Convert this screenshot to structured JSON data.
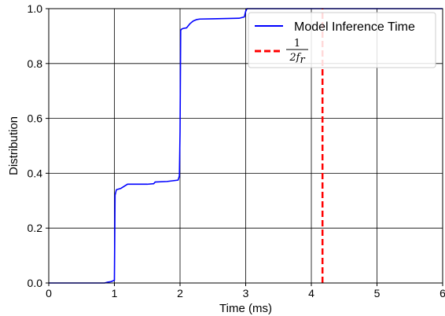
{
  "chart_data": {
    "type": "line",
    "title": "",
    "xlabel": "Time (ms)",
    "ylabel": "Distribution",
    "xlim": [
      0,
      6
    ],
    "ylim": [
      0,
      1.0
    ],
    "xticks": [
      0,
      1,
      2,
      3,
      4,
      5,
      6
    ],
    "yticks": [
      0.0,
      0.2,
      0.4,
      0.6,
      0.8,
      1.0
    ],
    "xtick_labels": [
      "0",
      "1",
      "2",
      "3",
      "4",
      "5",
      "6"
    ],
    "ytick_labels": [
      "0.0",
      "0.2",
      "0.4",
      "0.6",
      "0.8",
      "1.0"
    ],
    "grid": true,
    "legend_position": "top-right",
    "series": [
      {
        "name": "Model Inference Time",
        "style": "solid",
        "color": "#0000ff",
        "x": [
          0.0,
          0.85,
          0.9,
          0.95,
          0.98,
          1.0,
          1.01,
          1.03,
          1.1,
          1.2,
          1.5,
          1.6,
          1.62,
          1.8,
          1.97,
          1.99,
          2.0,
          2.01,
          2.02,
          2.05,
          2.1,
          2.15,
          2.2,
          2.25,
          2.3,
          2.5,
          2.9,
          2.98,
          3.0,
          3.02,
          6.0
        ],
        "y": [
          0.0,
          0.0,
          0.003,
          0.005,
          0.008,
          0.01,
          0.32,
          0.34,
          0.345,
          0.36,
          0.36,
          0.362,
          0.368,
          0.37,
          0.375,
          0.39,
          0.55,
          0.92,
          0.925,
          0.928,
          0.93,
          0.945,
          0.955,
          0.96,
          0.962,
          0.963,
          0.965,
          0.97,
          0.99,
          1.0,
          1.0
        ]
      },
      {
        "name": "1/(2 f_r)",
        "style": "dashed",
        "color": "#ff0000",
        "x": [
          4.17,
          4.17
        ],
        "y": [
          0.0,
          1.0
        ]
      }
    ]
  },
  "legend": {
    "model_label": "Model Inference Time",
    "math_numerator": "1",
    "math_denominator": "2f",
    "math_subscript": "r"
  }
}
